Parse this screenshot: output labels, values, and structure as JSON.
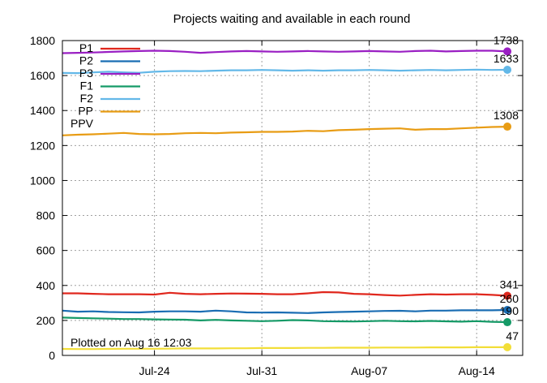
{
  "chart_data": {
    "type": "line",
    "title": "Projects waiting and available in each round",
    "xlabel": "",
    "ylabel": "",
    "ylim": [
      0,
      1800
    ],
    "yticks": [
      0,
      200,
      400,
      600,
      800,
      1000,
      1200,
      1400,
      1600,
      1800
    ],
    "xlim": [
      "2023-07-18",
      "2023-08-17"
    ],
    "xticks": [
      {
        "date": "2023-07-24",
        "label": "Jul-24"
      },
      {
        "date": "2023-07-31",
        "label": "Jul-31"
      },
      {
        "date": "2023-08-07",
        "label": "Aug-07"
      },
      {
        "date": "2023-08-14",
        "label": "Aug-14"
      }
    ],
    "grid": true,
    "legend_position": "top-left",
    "annotation": "Plotted on Aug 16 12:03",
    "x": [
      "2023-07-18",
      "2023-07-19",
      "2023-07-20",
      "2023-07-21",
      "2023-07-22",
      "2023-07-23",
      "2023-07-24",
      "2023-07-25",
      "2023-07-26",
      "2023-07-27",
      "2023-07-28",
      "2023-07-29",
      "2023-07-30",
      "2023-07-31",
      "2023-08-01",
      "2023-08-02",
      "2023-08-03",
      "2023-08-04",
      "2023-08-05",
      "2023-08-06",
      "2023-08-07",
      "2023-08-08",
      "2023-08-09",
      "2023-08-10",
      "2023-08-11",
      "2023-08-12",
      "2023-08-13",
      "2023-08-14",
      "2023-08-15",
      "2023-08-16"
    ],
    "series": [
      {
        "name": "P1",
        "color": "#e0271d",
        "end_label": "341",
        "values": [
          355,
          355,
          352,
          350,
          350,
          350,
          348,
          358,
          352,
          350,
          352,
          354,
          353,
          352,
          350,
          350,
          355,
          362,
          360,
          352,
          350,
          345,
          342,
          346,
          350,
          348,
          350,
          350,
          346,
          341
        ]
      },
      {
        "name": "P2",
        "color": "#1a6db3",
        "end_label": "260",
        "values": [
          256,
          250,
          252,
          248,
          247,
          246,
          250,
          252,
          252,
          250,
          256,
          252,
          246,
          245,
          246,
          244,
          242,
          246,
          248,
          250,
          252,
          254,
          255,
          252,
          256,
          256,
          258,
          258,
          258,
          260
        ]
      },
      {
        "name": "P3",
        "color": "#9a1fc3",
        "end_label": "1738",
        "values": [
          1728,
          1730,
          1732,
          1735,
          1738,
          1740,
          1742,
          1740,
          1736,
          1730,
          1734,
          1738,
          1740,
          1738,
          1736,
          1738,
          1740,
          1738,
          1736,
          1738,
          1740,
          1738,
          1736,
          1740,
          1742,
          1738,
          1740,
          1742,
          1742,
          1738
        ]
      },
      {
        "name": "F1",
        "color": "#159a67",
        "end_label": "190",
        "values": [
          216,
          214,
          212,
          210,
          208,
          208,
          206,
          205,
          204,
          200,
          203,
          200,
          198,
          196,
          198,
          202,
          200,
          196,
          195,
          194,
          196,
          198,
          196,
          195,
          197,
          195,
          193,
          196,
          192,
          190
        ]
      },
      {
        "name": "F2",
        "color": "#63b8e8",
        "end_label": "1633",
        "values": [
          1615,
          1614,
          1618,
          1622,
          1618,
          1616,
          1622,
          1625,
          1626,
          1625,
          1628,
          1630,
          1630,
          1632,
          1630,
          1628,
          1630,
          1628,
          1630,
          1630,
          1632,
          1630,
          1628,
          1630,
          1632,
          1630,
          1632,
          1634,
          1632,
          1633
        ]
      },
      {
        "name": "PP",
        "color": "#e89c14",
        "end_label": "1308",
        "values": [
          1258,
          1262,
          1264,
          1268,
          1272,
          1266,
          1264,
          1266,
          1270,
          1272,
          1270,
          1274,
          1276,
          1278,
          1278,
          1280,
          1284,
          1282,
          1288,
          1290,
          1294,
          1296,
          1298,
          1290,
          1294,
          1294,
          1298,
          1302,
          1306,
          1308
        ]
      },
      {
        "name": "PPV",
        "color": "#f2de38",
        "end_label": "47",
        "values": [
          37,
          36,
          36,
          37,
          38,
          38,
          38,
          39,
          40,
          40,
          40,
          41,
          41,
          42,
          42,
          42,
          43,
          43,
          44,
          44,
          44,
          45,
          45,
          45,
          46,
          46,
          46,
          47,
          47,
          47
        ]
      }
    ]
  }
}
